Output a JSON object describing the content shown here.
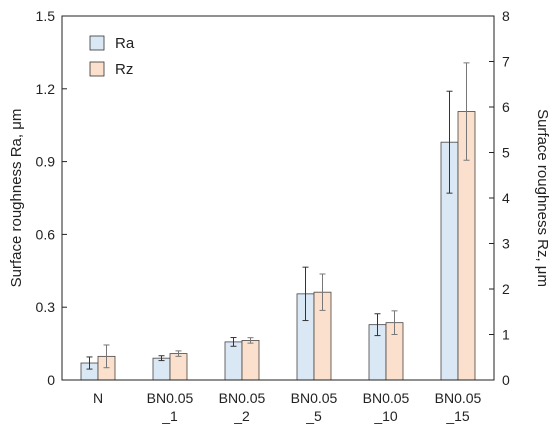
{
  "chart_data": {
    "type": "bar",
    "categories": [
      [
        "N"
      ],
      [
        "BN0.05",
        "_1"
      ],
      [
        "BN0.05",
        "_2"
      ],
      [
        "BN0.05",
        "_5"
      ],
      [
        "BN0.05",
        "_10"
      ],
      [
        "BN0.05",
        "_15"
      ]
    ],
    "series": [
      {
        "name": "Ra",
        "axis": "left",
        "values": [
          0.07,
          0.09,
          0.157,
          0.355,
          0.228,
          0.98
        ],
        "errors": [
          0.025,
          0.01,
          0.018,
          0.11,
          0.045,
          0.21
        ],
        "color": "#dae8f5"
      },
      {
        "name": "Rz",
        "axis": "right",
        "values": [
          0.52,
          0.58,
          0.87,
          1.93,
          1.26,
          5.9
        ],
        "errors": [
          0.25,
          0.06,
          0.06,
          0.4,
          0.26,
          1.07
        ],
        "color": "#fbe1cd"
      }
    ],
    "ylabel_left": "Surface roughness Ra, μm",
    "ylabel_right": "Surface roughness Rz, μm",
    "ylim_left": [
      0,
      1.5
    ],
    "ylim_right": [
      0,
      8
    ],
    "yticks_left": [
      "0",
      "0.3",
      "0.6",
      "0.9",
      "1.2",
      "1.5"
    ],
    "yticks_right": [
      "0",
      "1",
      "2",
      "3",
      "4",
      "5",
      "6",
      "7",
      "8"
    ],
    "legend": {
      "position": "top-left",
      "entries": [
        "Ra",
        "Rz"
      ]
    },
    "grid": false
  }
}
